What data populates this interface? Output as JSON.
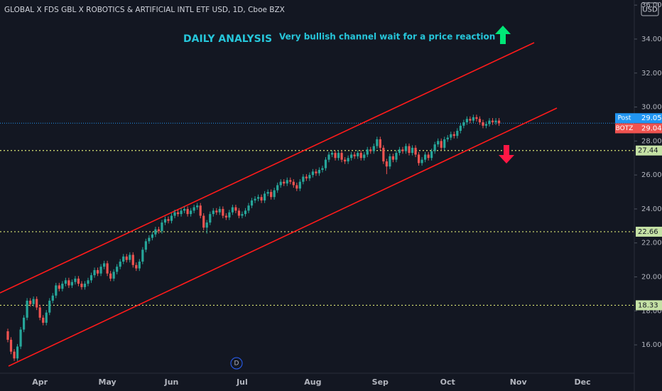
{
  "chart_data": {
    "type": "candlestick",
    "title": "GLOBAL X FDS GBL X ROBOTICS & ARTIFICIAL INTL ETF USD, 1D, Cboe BZX",
    "headline": "DAILY ANALYSIS",
    "annotation": "Very bullish channel wait for a price reaction",
    "currency": "USD",
    "marker": "D",
    "up_color": "#26a69a",
    "down_color": "#ef5350",
    "ylim": [
      14.33,
      36.3
    ],
    "yticks": [
      {
        "value": 16,
        "label": "16.00"
      },
      {
        "value": 18,
        "label": "18.00"
      },
      {
        "value": 20,
        "label": "20.00"
      },
      {
        "value": 22,
        "label": "22.00"
      },
      {
        "value": 24,
        "label": "24.00"
      },
      {
        "value": 26,
        "label": "26.00"
      },
      {
        "value": 28,
        "label": "28.00"
      },
      {
        "value": 30,
        "label": "30.00"
      },
      {
        "value": 32,
        "label": "32.00"
      },
      {
        "value": 34,
        "label": "34.00"
      },
      {
        "value": 36,
        "label": "36.00"
      }
    ],
    "levels": [
      27.44,
      22.66,
      18.33
    ],
    "level_color": "#c5e1a5",
    "post": {
      "name": "Post",
      "value": 29.05,
      "color": "#2196f3"
    },
    "last": {
      "name": "BOTZ",
      "value": 29.04,
      "color": "#ef5350"
    },
    "channel_color": "#ff1a1a",
    "channels": [
      {
        "start": 19.06,
        "end": 33.79
      },
      {
        "start": 14.75,
        "end": 29.94
      }
    ],
    "categories": [
      null,
      null,
      null,
      null,
      null,
      null,
      null,
      null,
      null,
      null,
      "Apr",
      null,
      null,
      null,
      null,
      null,
      null,
      null,
      null,
      null,
      null,
      null,
      null,
      null,
      null,
      null,
      null,
      null,
      null,
      null,
      null,
      "May",
      null,
      null,
      null,
      null,
      null,
      null,
      null,
      null,
      null,
      null,
      null,
      null,
      null,
      null,
      null,
      null,
      null,
      null,
      null,
      "Jun",
      null,
      null,
      null,
      null,
      null,
      null,
      null,
      null,
      null,
      null,
      null,
      null,
      null,
      null,
      null,
      null,
      null,
      null,
      null,
      null,
      null,
      "Jul",
      null,
      null,
      null,
      null,
      null,
      null,
      null,
      null,
      null,
      null,
      null,
      null,
      null,
      null,
      null,
      null,
      null,
      null,
      null,
      null,
      null,
      "Aug",
      null,
      null,
      null,
      null,
      null,
      null,
      null,
      null,
      null,
      null,
      null,
      null,
      null,
      null,
      null,
      null,
      null,
      null,
      null,
      null,
      "Sep",
      null,
      null,
      null,
      null,
      null,
      null,
      null,
      null,
      null,
      null,
      null,
      null,
      null,
      null,
      null,
      null,
      null,
      null,
      null,
      null,
      "Oct",
      null,
      null,
      null,
      null,
      null,
      null,
      null,
      null,
      null,
      null,
      null,
      null,
      null,
      null,
      null,
      null,
      null,
      null,
      null,
      null,
      null,
      "Nov",
      null,
      null,
      null,
      null,
      null,
      null,
      null,
      null,
      null,
      null,
      null,
      null,
      null,
      null,
      null,
      null,
      null,
      null,
      null,
      "Dec"
    ],
    "open": [
      16.8,
      16.3,
      15.6,
      15.2,
      15.9,
      16.9,
      17.6,
      18.6,
      18.4,
      18.7,
      18.2,
      17.6,
      17.3,
      17.9,
      18.6,
      18.9,
      19.5,
      19.3,
      19.6,
      19.8,
      19.5,
      19.7,
      19.9,
      19.6,
      19.4,
      19.6,
      19.8,
      20.1,
      20.4,
      20.2,
      20.6,
      20.8,
      20.2,
      19.9,
      20.3,
      20.6,
      20.9,
      21.2,
      21.0,
      21.3,
      20.7,
      20.5,
      20.9,
      21.6,
      22.1,
      22.3,
      22.5,
      22.8,
      22.7,
      23.2,
      23.4,
      23.3,
      23.6,
      23.8,
      23.7,
      23.9,
      24.0,
      23.7,
      23.9,
      24.1,
      24.2,
      23.6,
      22.9,
      23.2,
      23.7,
      23.9,
      23.8,
      24.0,
      23.6,
      23.5,
      23.8,
      24.1,
      23.9,
      23.6,
      23.7,
      23.9,
      24.2,
      24.5,
      24.6,
      24.7,
      24.5,
      24.9,
      25.0,
      24.7,
      25.1,
      25.4,
      25.6,
      25.5,
      25.7,
      25.6,
      25.4,
      25.2,
      25.6,
      25.9,
      25.8,
      26.0,
      26.2,
      26.1,
      26.3,
      26.4,
      26.9,
      27.2,
      27.3,
      27.0,
      27.3,
      26.9,
      26.8,
      27.0,
      27.2,
      27.1,
      27.3,
      27.0,
      27.2,
      27.5,
      27.4,
      27.7,
      28.1,
      27.6,
      26.8,
      26.5,
      27.1,
      26.9,
      27.3,
      27.5,
      27.4,
      27.7,
      27.3,
      27.6,
      27.2,
      26.7,
      26.9,
      27.2,
      27.0,
      27.4,
      27.8,
      28.0,
      27.6,
      28.1,
      28.2,
      28.4,
      28.3,
      28.6,
      28.9,
      29.1,
      29.3,
      29.2,
      29.4,
      29.3,
      29.1,
      28.9,
      29.0,
      29.2,
      29.1,
      29.2,
      null,
      null,
      null,
      null,
      null,
      null,
      null,
      null,
      null,
      null,
      null,
      null,
      null,
      null,
      null,
      null,
      null,
      null,
      null,
      null,
      null,
      null,
      null,
      null,
      null,
      null
    ],
    "high": [
      16.95,
      16.45,
      15.75,
      16.05,
      17.05,
      17.75,
      18.75,
      18.75,
      18.85,
      18.85,
      18.35,
      17.75,
      18.05,
      18.75,
      19.05,
      19.65,
      19.65,
      19.75,
      19.95,
      19.95,
      19.85,
      20.05,
      20.05,
      19.75,
      19.75,
      19.95,
      20.25,
      20.55,
      20.55,
      20.75,
      20.95,
      20.95,
      20.35,
      20.45,
      20.75,
      21.05,
      21.35,
      21.35,
      21.45,
      21.45,
      20.85,
      21.05,
      21.75,
      22.25,
      22.45,
      22.65,
      22.95,
      22.95,
      23.35,
      23.55,
      23.55,
      23.75,
      23.95,
      23.95,
      24.05,
      24.15,
      24.15,
      24.05,
      24.25,
      24.35,
      24.35,
      23.75,
      23.35,
      23.85,
      24.05,
      24.05,
      24.15,
      24.15,
      23.75,
      23.95,
      24.25,
      24.25,
      24.05,
      23.85,
      24.05,
      24.35,
      24.65,
      24.75,
      24.85,
      24.85,
      25.05,
      25.15,
      25.15,
      25.25,
      25.55,
      25.75,
      25.75,
      25.85,
      25.85,
      25.75,
      25.55,
      25.75,
      26.05,
      26.05,
      26.15,
      26.35,
      26.35,
      26.45,
      26.55,
      27.05,
      27.35,
      27.45,
      27.45,
      27.45,
      27.45,
      27.05,
      27.15,
      27.35,
      27.35,
      27.45,
      27.45,
      27.35,
      27.65,
      27.65,
      27.85,
      28.25,
      28.25,
      27.75,
      26.95,
      27.25,
      27.25,
      27.45,
      27.65,
      27.65,
      27.85,
      27.85,
      27.75,
      27.75,
      27.35,
      27.05,
      27.35,
      27.35,
      27.55,
      27.95,
      28.15,
      28.15,
      28.25,
      28.35,
      28.55,
      28.55,
      28.75,
      29.05,
      29.25,
      29.45,
      29.45,
      29.55,
      29.55,
      29.45,
      29.25,
      29.15,
      29.35,
      29.35,
      29.35,
      29.35,
      null,
      null,
      null,
      null,
      null,
      null,
      null,
      null,
      null,
      null,
      null,
      null,
      null,
      null,
      null,
      null,
      null,
      null,
      null,
      null,
      null,
      null,
      null,
      null,
      null,
      null
    ],
    "low": [
      16.15,
      15.45,
      15.05,
      15.05,
      15.75,
      16.75,
      17.45,
      18.25,
      18.25,
      18.05,
      17.45,
      17.15,
      17.15,
      17.75,
      18.45,
      18.75,
      19.15,
      19.15,
      19.45,
      19.35,
      19.35,
      19.55,
      19.45,
      19.25,
      19.25,
      19.45,
      19.65,
      19.95,
      20.05,
      20.05,
      20.45,
      20.05,
      19.75,
      19.75,
      20.15,
      20.45,
      20.75,
      20.85,
      20.85,
      20.55,
      20.35,
      20.35,
      20.75,
      21.45,
      21.95,
      22.15,
      22.35,
      22.55,
      22.55,
      23.05,
      23.15,
      23.15,
      23.45,
      23.55,
      23.55,
      23.75,
      23.55,
      23.55,
      23.75,
      23.95,
      23.45,
      22.75,
      22.55,
      23.05,
      23.55,
      23.65,
      23.65,
      23.45,
      23.35,
      23.35,
      23.65,
      23.75,
      23.45,
      23.45,
      23.55,
      23.75,
      24.05,
      24.35,
      24.45,
      24.35,
      24.35,
      24.75,
      24.55,
      24.55,
      24.95,
      25.25,
      25.35,
      25.35,
      25.45,
      25.25,
      25.05,
      25.05,
      25.45,
      25.65,
      25.65,
      25.85,
      25.95,
      25.95,
      26.15,
      26.25,
      26.75,
      27.05,
      26.85,
      26.85,
      26.75,
      26.65,
      26.65,
      26.85,
      26.95,
      26.95,
      26.85,
      26.85,
      27.05,
      27.25,
      27.25,
      27.55,
      27.45,
      26.65,
      26.05,
      26.35,
      26.75,
      26.75,
      27.15,
      27.25,
      27.25,
      27.15,
      27.15,
      27.05,
      26.55,
      26.55,
      26.75,
      26.85,
      26.85,
      27.25,
      27.65,
      27.45,
      27.45,
      27.95,
      28.05,
      28.15,
      28.15,
      28.45,
      28.75,
      28.95,
      29.05,
      29.05,
      29.15,
      28.95,
      28.75,
      28.75,
      28.85,
      28.95,
      28.95,
      28.89,
      null,
      null,
      null,
      null,
      null,
      null,
      null,
      null,
      null,
      null,
      null,
      null,
      null,
      null,
      null,
      null,
      null,
      null,
      null,
      null,
      null,
      null,
      null,
      null,
      null,
      null
    ],
    "close": [
      16.3,
      15.6,
      15.2,
      15.9,
      16.9,
      17.6,
      18.6,
      18.4,
      18.7,
      18.2,
      17.6,
      17.3,
      17.9,
      18.6,
      18.9,
      19.5,
      19.3,
      19.6,
      19.8,
      19.5,
      19.7,
      19.9,
      19.6,
      19.4,
      19.6,
      19.8,
      20.1,
      20.4,
      20.2,
      20.6,
      20.8,
      20.2,
      19.9,
      20.3,
      20.6,
      20.9,
      21.2,
      21.0,
      21.3,
      20.7,
      20.5,
      20.9,
      21.6,
      22.1,
      22.3,
      22.5,
      22.8,
      22.7,
      23.2,
      23.4,
      23.3,
      23.6,
      23.8,
      23.7,
      23.9,
      24.0,
      23.7,
      23.9,
      24.1,
      24.2,
      23.6,
      22.9,
      23.2,
      23.7,
      23.9,
      23.8,
      24.0,
      23.6,
      23.5,
      23.8,
      24.1,
      23.9,
      23.6,
      23.7,
      23.9,
      24.2,
      24.5,
      24.6,
      24.7,
      24.5,
      24.9,
      25.0,
      24.7,
      25.1,
      25.4,
      25.6,
      25.5,
      25.7,
      25.6,
      25.4,
      25.2,
      25.6,
      25.9,
      25.8,
      26.0,
      26.2,
      26.1,
      26.3,
      26.4,
      26.9,
      27.2,
      27.3,
      27.0,
      27.3,
      26.9,
      26.8,
      27.0,
      27.2,
      27.1,
      27.3,
      27.0,
      27.2,
      27.5,
      27.4,
      27.7,
      28.1,
      27.6,
      26.8,
      26.5,
      27.1,
      26.9,
      27.3,
      27.5,
      27.4,
      27.7,
      27.3,
      27.6,
      27.2,
      26.7,
      26.9,
      27.2,
      27.0,
      27.4,
      27.8,
      28.0,
      27.6,
      28.1,
      28.2,
      28.4,
      28.3,
      28.6,
      28.9,
      29.1,
      29.3,
      29.2,
      29.4,
      29.3,
      29.1,
      28.9,
      29.0,
      29.2,
      29.1,
      29.2,
      29.04,
      null,
      null,
      null,
      null,
      null,
      null,
      null,
      null,
      null,
      null,
      null,
      null,
      null,
      null,
      null,
      null,
      null,
      null,
      null,
      null,
      null,
      null,
      null,
      null,
      null,
      null
    ]
  }
}
